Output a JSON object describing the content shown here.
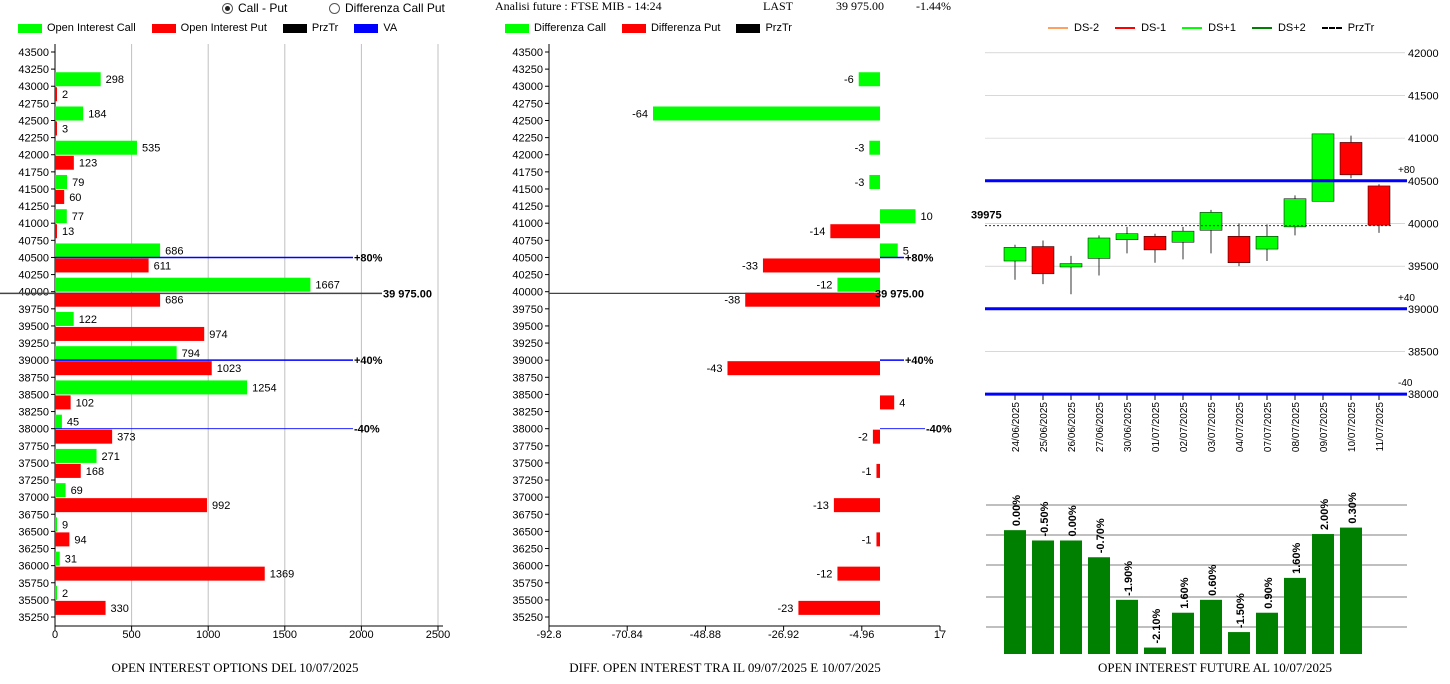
{
  "header": {
    "radio_call_put": "Call - Put",
    "radio_diff": "Differenza Call Put",
    "analysis_label": "Analisi future : FTSE MIB - 14:24",
    "last_label": "LAST",
    "last_value": "39 975.00",
    "last_change": "-1.44%"
  },
  "colors": {
    "green": "#00ff00",
    "red": "#ff0000",
    "black": "#000000",
    "blue": "#0000ff",
    "dark_green": "#008000",
    "grid": "#c0c0c0"
  },
  "chart_data": [
    {
      "type": "bar",
      "orientation": "horizontal",
      "caption": "OPEN INTEREST OPTIONS DEL 10/07/2025",
      "legend": [
        "Open Interest Call",
        "Open Interest Put",
        "PrzTr",
        "VA"
      ],
      "y_ticks": [
        "43500",
        "43250",
        "43000",
        "42750",
        "42500",
        "42250",
        "42000",
        "41750",
        "41500",
        "41250",
        "41000",
        "40750",
        "40500",
        "40250",
        "40000",
        "39750",
        "39500",
        "39250",
        "39000",
        "38750",
        "38500",
        "38250",
        "38000",
        "37750",
        "37500",
        "37250",
        "37000",
        "36750",
        "36500",
        "36250",
        "36000",
        "35750",
        "35500",
        "35250"
      ],
      "x_ticks": [
        "0",
        "500",
        "1000",
        "1500",
        "2000",
        "2500"
      ],
      "xlim": [
        0,
        2500
      ],
      "strikes": [
        43000,
        42500,
        42000,
        41500,
        41000,
        40500,
        40000,
        39500,
        39000,
        38500,
        38000,
        37500,
        37000,
        36500,
        36000,
        35500
      ],
      "series": [
        {
          "name": "Open Interest Call",
          "values": [
            298,
            184,
            535,
            79,
            77,
            686,
            1667,
            122,
            794,
            1254,
            45,
            271,
            69,
            9,
            31,
            2
          ]
        },
        {
          "name": "Open Interest Put",
          "values": [
            2,
            3,
            123,
            60,
            13,
            611,
            686,
            974,
            1023,
            102,
            373,
            168,
            992,
            94,
            1369,
            330
          ]
        }
      ],
      "levels": [
        {
          "label": "+80%",
          "price": 40500
        },
        {
          "label": "39 975.00",
          "price": 39975
        },
        {
          "label": "+40%",
          "price": 39000
        },
        {
          "label": "-40%",
          "price": 38000
        }
      ]
    },
    {
      "type": "bar",
      "orientation": "horizontal",
      "caption": "DIFF. OPEN INTEREST TRA IL 09/07/2025 E 10/07/2025",
      "legend": [
        "Differenza Call",
        "Differenza Put",
        "PrzTr"
      ],
      "y_ticks": [
        "43500",
        "43250",
        "43000",
        "42750",
        "42500",
        "42250",
        "42000",
        "41750",
        "41500",
        "41250",
        "41000",
        "40750",
        "40500",
        "40250",
        "40000",
        "39750",
        "39500",
        "39250",
        "39000",
        "38750",
        "38500",
        "38250",
        "38000",
        "37750",
        "37500",
        "37250",
        "37000",
        "36750",
        "36500",
        "36250",
        "36000",
        "35750",
        "35500",
        "35250"
      ],
      "x_ticks": [
        "-92.8",
        "-70.84",
        "-48.88",
        "-26.92",
        "-4.96",
        "17"
      ],
      "xlim": [
        -92.8,
        17
      ],
      "strikes": [
        43000,
        42500,
        42000,
        41500,
        41000,
        40500,
        40000,
        39500,
        39000,
        38500,
        38000,
        37500,
        37000,
        36500,
        36000,
        35500
      ],
      "series": [
        {
          "name": "Differenza Call",
          "values": [
            -6,
            -64,
            -3,
            -3,
            10,
            5,
            -12,
            null,
            null,
            null,
            null,
            null,
            null,
            null,
            null,
            null
          ]
        },
        {
          "name": "Differenza Put",
          "values": [
            null,
            null,
            null,
            null,
            -14,
            -33,
            -38,
            null,
            -43,
            4,
            -2,
            -1,
            -13,
            -1,
            -12,
            -23
          ]
        }
      ],
      "levels": [
        {
          "label": "+80%",
          "price": 40500
        },
        {
          "label": "39 975.00",
          "price": 39975
        },
        {
          "label": "+40%",
          "price": 39000
        },
        {
          "label": "-40%",
          "price": 38000
        }
      ]
    },
    {
      "type": "candlestick",
      "legend": [
        "DS-2",
        "DS-1",
        "DS+1",
        "DS+2",
        "PrzTr"
      ],
      "y_ticks": [
        "42000",
        "41500",
        "41000",
        "40500",
        "40000",
        "39500",
        "39000",
        "38500",
        "38000"
      ],
      "ylim": [
        37990,
        42150
      ],
      "x_ticks": [
        "24/06/2025",
        "25/06/2025",
        "26/06/2025",
        "27/06/2025",
        "30/06/2025",
        "01/07/2025",
        "02/07/2025",
        "03/07/2025",
        "04/07/2025",
        "07/07/2025",
        "08/07/2025",
        "09/07/2025",
        "10/07/2025",
        "11/07/2025"
      ],
      "candles": [
        {
          "open": 39560,
          "close": 39720,
          "high": 39750,
          "low": 39340
        },
        {
          "open": 39730,
          "close": 39410,
          "high": 39800,
          "low": 39290
        },
        {
          "open": 39490,
          "close": 39530,
          "high": 39620,
          "low": 39170
        },
        {
          "open": 39590,
          "close": 39830,
          "high": 39860,
          "low": 39390
        },
        {
          "open": 39810,
          "close": 39880,
          "high": 39960,
          "low": 39650
        },
        {
          "open": 39850,
          "close": 39690,
          "high": 39880,
          "low": 39540
        },
        {
          "open": 39780,
          "close": 39910,
          "high": 39960,
          "low": 39580
        },
        {
          "open": 39920,
          "close": 40130,
          "high": 40160,
          "low": 39650
        },
        {
          "open": 39850,
          "close": 39540,
          "high": 40000,
          "low": 39500
        },
        {
          "open": 39700,
          "close": 39850,
          "high": 39990,
          "low": 39560
        },
        {
          "open": 39960,
          "close": 40290,
          "high": 40330,
          "low": 39860
        },
        {
          "open": 40260,
          "close": 41050,
          "high": 41050,
          "low": 40260
        },
        {
          "open": 40950,
          "close": 40570,
          "high": 41030,
          "low": 40530
        },
        {
          "open": 40440,
          "close": 39980,
          "high": 40460,
          "low": 39890
        }
      ],
      "price_label": "39975",
      "price": 39975,
      "levels": [
        {
          "label": "+80",
          "price": 40500
        },
        {
          "label": "+40",
          "price": 39000
        },
        {
          "label": "-40",
          "price": 38000
        }
      ]
    },
    {
      "type": "bar",
      "caption": "OPEN INTEREST FUTURE AL 10/07/2025",
      "categories": [
        "24/06/2025",
        "25/06/2025",
        "26/06/2025",
        "27/06/2025",
        "30/06/2025",
        "01/07/2025",
        "02/07/2025",
        "03/07/2025",
        "04/07/2025",
        "07/07/2025",
        "08/07/2025",
        "09/07/2025",
        "10/07/2025"
      ],
      "bar_labels": [
        "0.00%",
        "-0.50%",
        "0.00%",
        "-0.70%",
        "-1.90%",
        "-2.10%",
        "1.60%",
        "0.60%",
        "-1.50%",
        "0.90%",
        "1.60%",
        "2.00%",
        "0.30%"
      ],
      "values": [
        0.96,
        0.88,
        0.88,
        0.75,
        0.42,
        0.05,
        0.32,
        0.42,
        0.17,
        0.32,
        0.59,
        0.93,
        0.98
      ]
    }
  ]
}
